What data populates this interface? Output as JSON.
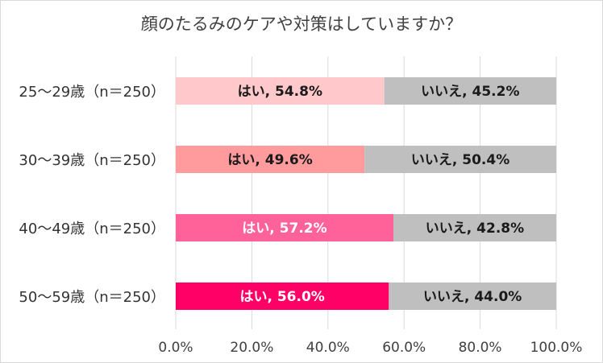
{
  "chart_data": {
    "type": "bar",
    "orientation": "horizontal",
    "stacked": true,
    "title": "顔のたるみのケアや対策はしていますか？",
    "categories": [
      "25〜29歳（n＝250）",
      "30〜39歳（n＝250）",
      "40〜49歳（n＝250）",
      "50〜59歳（n＝250）"
    ],
    "series": [
      {
        "name": "はい",
        "values": [
          54.8,
          49.6,
          57.2,
          56.0
        ],
        "colors": [
          "#ffc9cc",
          "#ff9b9c",
          "#ff6199",
          "#ff0066"
        ],
        "label_colors": [
          "#1a1a1a",
          "#1a1a1a",
          "#ffffff",
          "#ffffff"
        ]
      },
      {
        "name": "いいえ",
        "values": [
          45.2,
          50.4,
          42.8,
          44.0
        ],
        "colors": [
          "#bfbfbf",
          "#bfbfbf",
          "#bfbfbf",
          "#bfbfbf"
        ],
        "label_colors": [
          "#1a1a1a",
          "#1a1a1a",
          "#1a1a1a",
          "#1a1a1a"
        ]
      }
    ],
    "data_labels": [
      [
        "はい, 54.8%",
        "はい, 49.6%",
        "はい, 57.2%",
        "はい, 56.0%"
      ],
      [
        "いいえ, 45.2%",
        "いいえ, 50.4%",
        "いいえ, 42.8%",
        "いいえ, 44.0%"
      ]
    ],
    "xlim": [
      0,
      100
    ],
    "ticks": [
      0,
      20,
      40,
      60,
      80,
      100
    ],
    "tick_labels": [
      "0.0%",
      "20.0%",
      "40.0%",
      "60.0%",
      "80.0%",
      "100.0%"
    ],
    "grid": true,
    "gridline_color": "#d9d9d9"
  }
}
